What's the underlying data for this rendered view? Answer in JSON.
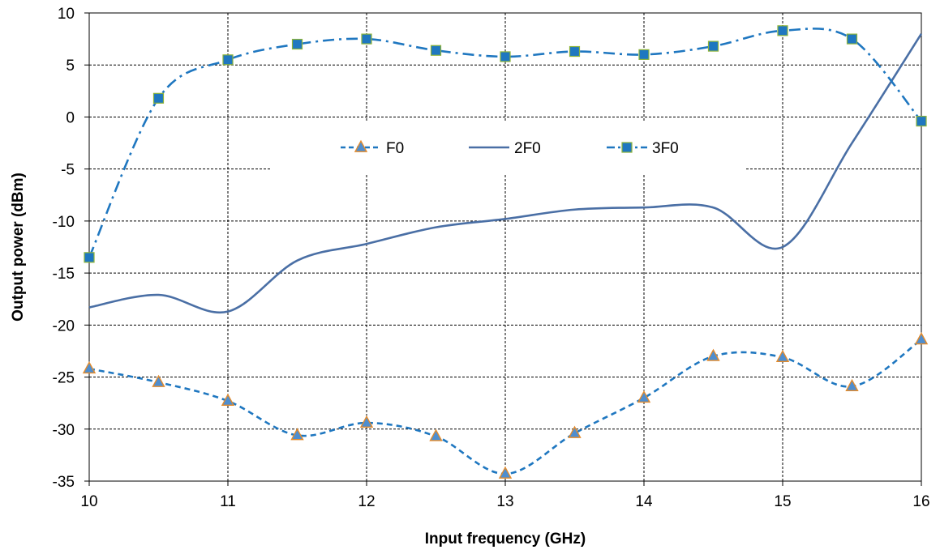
{
  "chart_data": {
    "type": "line",
    "xlabel": "Input frequency (GHz)",
    "ylabel": "Output power (dBm)",
    "xlim": [
      10,
      16
    ],
    "ylim": [
      -35,
      10
    ],
    "xticks": [
      10,
      11,
      12,
      13,
      14,
      15,
      16
    ],
    "yticks": [
      -35,
      -30,
      -25,
      -20,
      -15,
      -10,
      -5,
      0,
      5,
      10
    ],
    "grid": true,
    "legend_position": "top-center",
    "series": [
      {
        "name": "F0",
        "style": "dashed",
        "marker": "triangle",
        "color": "#1F77C0",
        "marker_fill": "#4F8ECF",
        "marker_edge": "#E38B2C",
        "x": [
          10,
          10.5,
          11,
          11.5,
          12,
          12.5,
          13,
          13.5,
          14,
          14.5,
          15,
          15.5,
          16
        ],
        "values": [
          -24.2,
          -25.5,
          -27.3,
          -30.6,
          -29.4,
          -30.7,
          -34.3,
          -30.4,
          -27.0,
          -23.0,
          -23.1,
          -25.9,
          -21.4
        ]
      },
      {
        "name": "2F0",
        "style": "solid",
        "marker": "none",
        "color": "#4A6FA5",
        "x": [
          10,
          10.5,
          11,
          11.5,
          12,
          12.5,
          13,
          13.5,
          14,
          14.5,
          15,
          15.5,
          16
        ],
        "values": [
          -18.3,
          -17.1,
          -18.7,
          -13.8,
          -12.2,
          -10.6,
          -9.8,
          -8.9,
          -8.7,
          -8.7,
          -12.5,
          -2.5,
          8.0
        ]
      },
      {
        "name": "3F0",
        "style": "dashdot",
        "marker": "square",
        "color": "#1F77C0",
        "marker_fill": "#1F77C0",
        "marker_edge": "#8DB33A",
        "x": [
          10,
          10.5,
          11,
          11.5,
          12,
          12.5,
          13,
          13.5,
          14,
          14.5,
          15,
          15.5,
          16
        ],
        "values": [
          -13.5,
          1.8,
          5.5,
          7.0,
          7.5,
          6.4,
          5.8,
          6.3,
          6.0,
          6.8,
          8.3,
          7.5,
          -0.4
        ]
      }
    ]
  }
}
